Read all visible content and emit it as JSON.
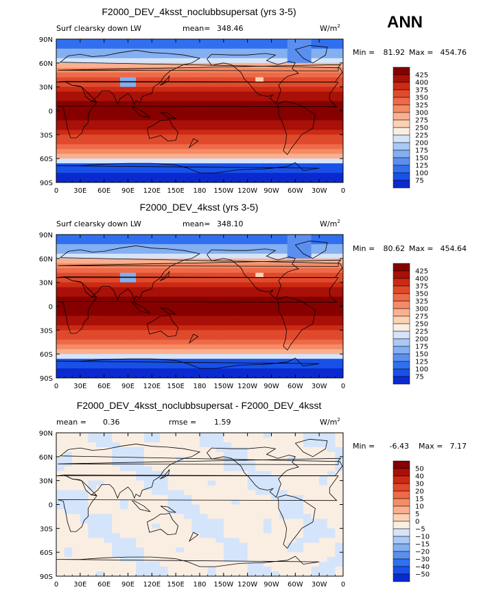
{
  "season": "ANN",
  "colors": {
    "abs": [
      "#000080",
      "#0a2ad0",
      "#1850e8",
      "#3070f0",
      "#5a8ff0",
      "#84aff0",
      "#acc8f5",
      "#d4e4fa",
      "#faeee2",
      "#fcd2b4",
      "#fab090",
      "#f58c66",
      "#ee6a48",
      "#e04a2c",
      "#cc2a14",
      "#a81008",
      "#860000"
    ],
    "diff": [
      "#000080",
      "#0a2ad0",
      "#1850e8",
      "#3070f0",
      "#5a8ff0",
      "#84aff0",
      "#acc8f5",
      "#d4e4fa",
      "#faeee2",
      "#fcd2b4",
      "#fab090",
      "#f58c66",
      "#ee6a48",
      "#e04a2c",
      "#cc2a14",
      "#a81008",
      "#860000"
    ],
    "coast": "#000000"
  },
  "axes": {
    "lon_ticks": [
      "0",
      "30E",
      "60E",
      "90E",
      "120E",
      "150E",
      "180",
      "150W",
      "120W",
      "90W",
      "60W",
      "30W",
      "0"
    ],
    "lat_ticks": [
      "90N",
      "60N",
      "30N",
      "0",
      "30S",
      "60S",
      "90S"
    ]
  },
  "chart_data": [
    {
      "type": "heatmap",
      "title": "F2000_DEV_4ksst_noclubbsupersat (yrs 3-5)",
      "left_label": "Surf clearsky down LW",
      "stat1_label": "mean=",
      "stat1_value": "348.46",
      "units": "W/m",
      "units_exp": "2",
      "min_label": "Min =",
      "min_value": "81.92",
      "max_label": "Max =",
      "max_value": "454.76",
      "colorbar_levels": [
        "425",
        "400",
        "375",
        "350",
        "325",
        "300",
        "275",
        "250",
        "225",
        "200",
        "175",
        "150",
        "125",
        "100",
        "75"
      ],
      "field_mean": 348.46,
      "field_min": 81.92,
      "field_max": 454.76,
      "xlim": [
        0,
        360
      ],
      "ylim": [
        -90,
        90
      ]
    },
    {
      "type": "heatmap",
      "title": "F2000_DEV_4ksst (yrs 3-5)",
      "left_label": "Surf clearsky down LW",
      "stat1_label": "mean=",
      "stat1_value": "348.10",
      "units": "W/m",
      "units_exp": "2",
      "min_label": "Min =",
      "min_value": "80.62",
      "max_label": "Max =",
      "max_value": "454.64",
      "colorbar_levels": [
        "425",
        "400",
        "375",
        "350",
        "325",
        "300",
        "275",
        "250",
        "225",
        "200",
        "175",
        "150",
        "125",
        "100",
        "75"
      ],
      "field_mean": 348.1,
      "field_min": 80.62,
      "field_max": 454.64,
      "xlim": [
        0,
        360
      ],
      "ylim": [
        -90,
        90
      ]
    },
    {
      "type": "heatmap",
      "title": "F2000_DEV_4ksst_noclubbsupersat - F2000_DEV_4ksst",
      "left_label": "mean =",
      "left_value": "0.36",
      "stat1_label": "rmse =",
      "stat1_value": "1.59",
      "units": "W/m",
      "units_exp": "2",
      "min_label": "Min =",
      "min_value": "-6.43",
      "max_label": "Max =",
      "max_value": "7.17",
      "colorbar_levels": [
        "50",
        "40",
        "30",
        "20",
        "15",
        "10",
        "5",
        "0",
        "−5",
        "−10",
        "−15",
        "−20",
        "−30",
        "−40",
        "−50"
      ],
      "field_mean": 0.36,
      "field_min": -6.43,
      "field_max": 7.17,
      "xlim": [
        0,
        360
      ],
      "ylim": [
        -90,
        90
      ]
    }
  ]
}
